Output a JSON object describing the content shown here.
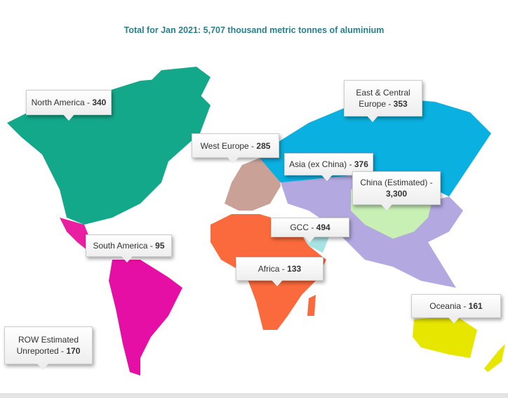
{
  "title": "Total for Jan 2021: 5,707 thousand metric tonnes of aluminium",
  "regions": [
    {
      "name": "North America -",
      "value": 340
    },
    {
      "name": "East & Central Europe -",
      "value": 353
    },
    {
      "name": "West Europe -",
      "value": 285
    },
    {
      "name": "Asia (ex China) -",
      "value": 376
    },
    {
      "name": "China (Estimated) -",
      "value": 3300,
      "value_label": "3,300"
    },
    {
      "name": "GCC -",
      "value": 494
    },
    {
      "name": "South America -",
      "value": 95
    },
    {
      "name": "Africa -",
      "value": 133
    },
    {
      "name": "Oceania -",
      "value": 161
    },
    {
      "name": "ROW Estimated Unreported -",
      "value": 170
    }
  ]
}
